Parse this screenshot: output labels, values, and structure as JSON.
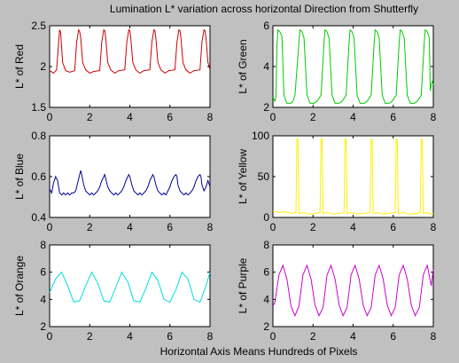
{
  "figure": {
    "title": "Lumination L* variation across horizontal Direction from Shutterfly",
    "xlabel": "Horizontal Axis Means Hundreds of Pixels",
    "background": "#c0c0c0"
  },
  "chart_data": [
    {
      "type": "line",
      "ylabel": "L* of Red",
      "color": "#cc0000",
      "xlim": [
        0,
        8
      ],
      "ylim": [
        1.5,
        2.5
      ],
      "xticks": [
        0,
        2,
        4,
        6,
        8
      ],
      "yticks": [
        1.5,
        2,
        2.5
      ],
      "xtick_labels": [
        "0",
        "2",
        "4",
        "6",
        "8"
      ],
      "ytick_labels": [
        "1.5",
        "2",
        "2.5"
      ],
      "x": [
        0,
        0.2,
        0.35,
        0.45,
        0.5,
        0.55,
        0.65,
        0.8,
        1.0,
        1.25,
        1.35,
        1.45,
        1.5,
        1.55,
        1.65,
        1.8,
        2.0,
        2.2,
        2.5,
        2.6,
        2.7,
        2.75,
        2.8,
        2.9,
        3.05,
        3.25,
        3.45,
        3.75,
        3.85,
        3.95,
        4.0,
        4.05,
        4.15,
        4.3,
        4.5,
        4.7,
        5.0,
        5.1,
        5.2,
        5.25,
        5.3,
        5.4,
        5.55,
        5.75,
        5.95,
        6.25,
        6.35,
        6.45,
        6.5,
        6.55,
        6.65,
        6.8,
        7.0,
        7.2,
        7.5,
        7.6,
        7.7,
        7.75,
        7.8,
        7.9,
        8.0
      ],
      "y": [
        1.95,
        1.92,
        1.96,
        2.3,
        2.45,
        2.42,
        2.05,
        1.95,
        1.93,
        1.95,
        2.3,
        2.45,
        2.43,
        2.35,
        2.05,
        1.96,
        1.92,
        1.94,
        1.95,
        2.3,
        2.45,
        2.44,
        2.35,
        2.05,
        1.96,
        1.92,
        1.95,
        1.96,
        2.3,
        2.45,
        2.44,
        2.35,
        2.05,
        1.96,
        1.92,
        1.95,
        1.96,
        2.3,
        2.45,
        2.44,
        2.35,
        2.05,
        1.96,
        1.92,
        1.95,
        1.96,
        2.3,
        2.45,
        2.44,
        2.35,
        2.05,
        1.96,
        1.92,
        1.95,
        1.96,
        2.3,
        2.45,
        2.44,
        2.35,
        2.05,
        1.96
      ]
    },
    {
      "type": "line",
      "ylabel": "L* of Green",
      "color": "#00cc00",
      "xlim": [
        0,
        8
      ],
      "ylim": [
        2,
        6
      ],
      "xticks": [
        0,
        2,
        4,
        6,
        8
      ],
      "yticks": [
        2,
        4,
        6
      ],
      "xtick_labels": [
        "0",
        "2",
        "4",
        "6",
        "8"
      ],
      "ytick_labels": [
        "2",
        "4",
        "6"
      ],
      "x": [
        0,
        0.1,
        0.15,
        0.2,
        0.25,
        0.35,
        0.45,
        0.55,
        0.7,
        0.9,
        1.0,
        1.1,
        1.3,
        1.35,
        1.45,
        1.55,
        1.7,
        1.85,
        2.05,
        2.2,
        2.4,
        2.55,
        2.6,
        2.7,
        2.8,
        2.95,
        3.1,
        3.3,
        3.45,
        3.65,
        3.8,
        3.85,
        3.95,
        4.05,
        4.2,
        4.35,
        4.55,
        4.7,
        4.9,
        5.05,
        5.1,
        5.2,
        5.3,
        5.45,
        5.6,
        5.8,
        5.95,
        6.15,
        6.3,
        6.35,
        6.45,
        6.55,
        6.7,
        6.85,
        7.05,
        7.2,
        7.4,
        7.55,
        7.6,
        7.7,
        7.8,
        7.85,
        7.9,
        7.95,
        8.0
      ],
      "y": [
        2.5,
        2.3,
        2.5,
        5.0,
        5.8,
        5.7,
        5.5,
        2.6,
        2.2,
        2.2,
        2.3,
        2.6,
        5.2,
        5.8,
        5.7,
        5.4,
        2.6,
        2.2,
        2.2,
        2.3,
        2.6,
        5.2,
        5.8,
        5.7,
        5.4,
        2.6,
        2.2,
        2.2,
        2.3,
        2.6,
        5.2,
        5.8,
        5.7,
        5.4,
        2.6,
        2.2,
        2.2,
        2.3,
        2.6,
        5.2,
        5.8,
        5.7,
        5.4,
        2.6,
        2.2,
        2.2,
        2.3,
        2.6,
        5.2,
        5.8,
        5.7,
        5.4,
        2.6,
        2.2,
        2.2,
        2.3,
        2.6,
        5.2,
        5.8,
        5.7,
        5.4,
        2.8,
        3.1,
        3.3,
        3.1
      ]
    },
    {
      "type": "line",
      "ylabel": "L* of Blue",
      "color": "#000099",
      "xlim": [
        0,
        8
      ],
      "ylim": [
        0.4,
        0.8
      ],
      "xticks": [
        0,
        2,
        4,
        6,
        8
      ],
      "yticks": [
        0.4,
        0.6,
        0.8
      ],
      "xtick_labels": [
        "0",
        "2",
        "4",
        "6",
        "8"
      ],
      "ytick_labels": [
        "0.4",
        "0.6",
        "0.8"
      ],
      "x": [
        0,
        0.1,
        0.2,
        0.3,
        0.4,
        0.5,
        0.6,
        0.7,
        0.8,
        0.9,
        1.0,
        1.1,
        1.2,
        1.3,
        1.4,
        1.5,
        1.55,
        1.6,
        1.7,
        1.8,
        1.9,
        2.0,
        2.1,
        2.2,
        2.3,
        2.4,
        2.5,
        2.6,
        2.7,
        2.75,
        2.8,
        2.9,
        3.0,
        3.1,
        3.2,
        3.3,
        3.4,
        3.5,
        3.6,
        3.7,
        3.8,
        3.9,
        3.95,
        4.0,
        4.1,
        4.2,
        4.3,
        4.4,
        4.5,
        4.6,
        4.7,
        4.8,
        4.9,
        5.0,
        5.1,
        5.15,
        5.2,
        5.3,
        5.4,
        5.5,
        5.6,
        5.7,
        5.8,
        5.9,
        6.0,
        6.1,
        6.2,
        6.3,
        6.35,
        6.4,
        6.5,
        6.6,
        6.7,
        6.8,
        6.9,
        7.0,
        7.1,
        7.2,
        7.3,
        7.4,
        7.5,
        7.55,
        7.6,
        7.7,
        7.8,
        7.9,
        8.0
      ],
      "y": [
        0.54,
        0.52,
        0.57,
        0.6,
        0.58,
        0.52,
        0.51,
        0.52,
        0.51,
        0.52,
        0.51,
        0.52,
        0.52,
        0.53,
        0.57,
        0.61,
        0.63,
        0.61,
        0.56,
        0.53,
        0.52,
        0.51,
        0.52,
        0.51,
        0.52,
        0.53,
        0.55,
        0.58,
        0.6,
        0.61,
        0.59,
        0.55,
        0.53,
        0.52,
        0.51,
        0.52,
        0.51,
        0.52,
        0.53,
        0.55,
        0.58,
        0.6,
        0.61,
        0.6,
        0.56,
        0.53,
        0.52,
        0.51,
        0.52,
        0.51,
        0.52,
        0.53,
        0.55,
        0.58,
        0.6,
        0.61,
        0.6,
        0.56,
        0.53,
        0.52,
        0.51,
        0.52,
        0.51,
        0.53,
        0.55,
        0.58,
        0.6,
        0.61,
        0.6,
        0.56,
        0.53,
        0.52,
        0.51,
        0.52,
        0.51,
        0.52,
        0.53,
        0.55,
        0.58,
        0.6,
        0.61,
        0.6,
        0.56,
        0.53,
        0.55,
        0.58,
        0.55
      ]
    },
    {
      "type": "line",
      "ylabel": "L* of Yellow",
      "color": "#ffee00",
      "xlim": [
        0,
        8
      ],
      "ylim": [
        0,
        100
      ],
      "xticks": [
        0,
        2,
        4,
        6,
        8
      ],
      "yticks": [
        0,
        50,
        100
      ],
      "xtick_labels": [
        "0",
        "2",
        "4",
        "6",
        "8"
      ],
      "ytick_labels": [
        "0",
        "50",
        "100"
      ],
      "x": [
        0,
        0.3,
        0.6,
        1.0,
        1.15,
        1.2,
        1.25,
        1.3,
        1.35,
        1.5,
        1.8,
        2.1,
        2.35,
        2.4,
        2.45,
        2.5,
        2.55,
        2.7,
        3.0,
        3.3,
        3.55,
        3.6,
        3.65,
        3.7,
        3.75,
        3.9,
        4.2,
        4.6,
        4.85,
        4.9,
        4.95,
        5.0,
        5.05,
        5.2,
        5.5,
        5.8,
        6.1,
        6.15,
        6.2,
        6.25,
        6.3,
        6.5,
        6.8,
        7.2,
        7.35,
        7.4,
        7.45,
        7.5,
        7.55,
        7.7,
        7.9,
        8.0
      ],
      "y": [
        8,
        6,
        7,
        5,
        6,
        96,
        96,
        5,
        5,
        6,
        4,
        5,
        6,
        96,
        96,
        5,
        5,
        6,
        4,
        5,
        6,
        96,
        96,
        5,
        5,
        6,
        4,
        5,
        6,
        96,
        96,
        5,
        5,
        6,
        4,
        5,
        6,
        96,
        96,
        5,
        5,
        6,
        4,
        5,
        6,
        96,
        96,
        5,
        5,
        6,
        4,
        5
      ]
    },
    {
      "type": "line",
      "ylabel": "L* of Orange",
      "color": "#00dddd",
      "xlim": [
        0,
        8
      ],
      "ylim": [
        2,
        8
      ],
      "xticks": [
        0,
        2,
        4,
        6,
        8
      ],
      "yticks": [
        2,
        4,
        6,
        8
      ],
      "xtick_labels": [
        "0",
        "2",
        "4",
        "6",
        "8"
      ],
      "ytick_labels": [
        "2",
        "4",
        "6",
        "8"
      ],
      "x": [
        0,
        0.3,
        0.6,
        0.9,
        1.2,
        1.5,
        1.8,
        2.1,
        2.4,
        2.7,
        3.0,
        3.3,
        3.6,
        3.9,
        4.2,
        4.5,
        4.8,
        5.1,
        5.4,
        5.7,
        6.0,
        6.3,
        6.6,
        6.9,
        7.2,
        7.5,
        7.8,
        8.0
      ],
      "y": [
        4.5,
        5.5,
        6.0,
        5.0,
        3.8,
        3.9,
        5.0,
        6.0,
        5.2,
        3.9,
        3.8,
        4.9,
        6.0,
        5.3,
        3.9,
        3.8,
        4.8,
        6.0,
        5.4,
        4.0,
        3.8,
        4.7,
        6.0,
        5.5,
        4.0,
        3.8,
        5.0,
        6.0
      ]
    },
    {
      "type": "line",
      "ylabel": "L* of Purple",
      "color": "#cc00cc",
      "xlim": [
        0,
        8
      ],
      "ylim": [
        2,
        8
      ],
      "xticks": [
        0,
        2,
        4,
        6,
        8
      ],
      "yticks": [
        2,
        4,
        6,
        8
      ],
      "xtick_labels": [
        "0",
        "2",
        "4",
        "6",
        "8"
      ],
      "ytick_labels": [
        "2",
        "4",
        "6",
        "8"
      ],
      "x": [
        0,
        0.1,
        0.3,
        0.5,
        0.7,
        0.9,
        1.1,
        1.3,
        1.5,
        1.7,
        1.9,
        2.1,
        2.3,
        2.5,
        2.7,
        2.9,
        3.1,
        3.3,
        3.5,
        3.7,
        3.9,
        4.1,
        4.3,
        4.5,
        4.7,
        4.9,
        5.1,
        5.3,
        5.5,
        5.7,
        5.9,
        6.1,
        6.3,
        6.5,
        6.7,
        6.9,
        7.1,
        7.3,
        7.5,
        7.7,
        7.9,
        8.0
      ],
      "y": [
        3.5,
        3.8,
        5.8,
        6.5,
        5.5,
        3.5,
        2.8,
        3.5,
        5.8,
        6.5,
        5.5,
        3.6,
        2.8,
        3.4,
        5.8,
        6.5,
        5.5,
        3.6,
        2.8,
        3.4,
        5.8,
        6.5,
        5.5,
        3.6,
        2.8,
        3.4,
        5.8,
        6.5,
        5.5,
        3.6,
        2.8,
        3.4,
        5.8,
        6.5,
        5.5,
        3.6,
        2.8,
        3.4,
        5.8,
        6.5,
        5.0,
        6.2
      ]
    }
  ]
}
